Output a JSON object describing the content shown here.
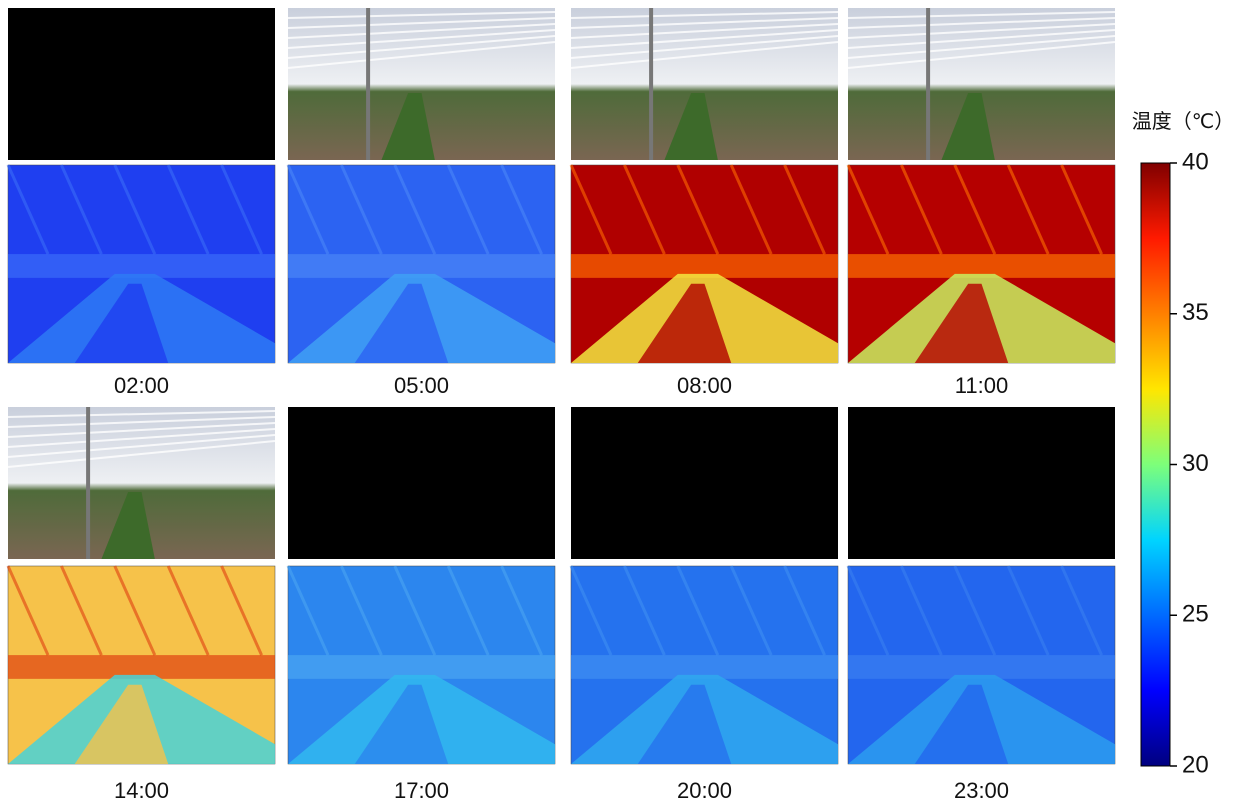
{
  "panels": [
    {
      "time": "02:00"
    },
    {
      "time": "05:00"
    },
    {
      "time": "08:00"
    },
    {
      "time": "11:00"
    },
    {
      "time": "14:00"
    },
    {
      "time": "17:00"
    },
    {
      "time": "20:00"
    },
    {
      "time": "23:00"
    }
  ],
  "colorbar": {
    "title": "温度（℃）",
    "lim": [
      20,
      40
    ],
    "ticks": [
      20,
      25,
      30,
      35,
      40
    ]
  }
}
